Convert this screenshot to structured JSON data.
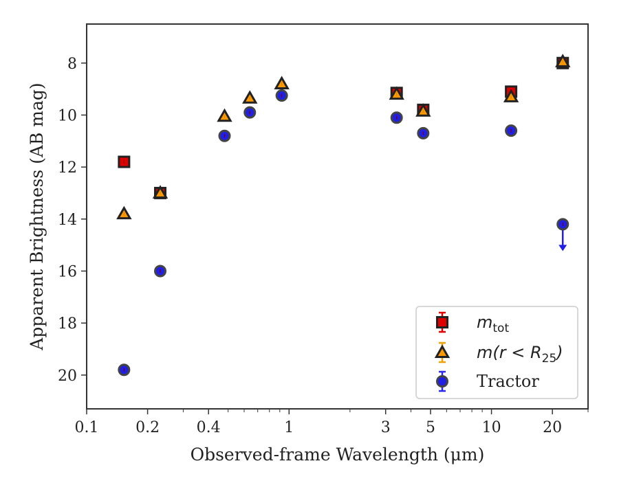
{
  "chart_data": {
    "type": "scatter",
    "title": "",
    "xlabel": "Observed-frame Wavelength (μm)",
    "ylabel": "Apparent Brightness (AB mag)",
    "xscale": "log",
    "xlim": [
      0.1,
      30
    ],
    "ylim": [
      21.3,
      6.5
    ],
    "y_inverted": true,
    "grid": false,
    "legend_position": "lower-right",
    "x_ticks": [
      {
        "value": 0.1,
        "label": "0.1"
      },
      {
        "value": 0.2,
        "label": "0.2"
      },
      {
        "value": 0.4,
        "label": "0.4"
      },
      {
        "value": 1,
        "label": "1"
      },
      {
        "value": 3,
        "label": "3"
      },
      {
        "value": 5,
        "label": "5"
      },
      {
        "value": 10,
        "label": "10"
      },
      {
        "value": 20,
        "label": "20"
      }
    ],
    "y_ticks": [
      {
        "value": 8,
        "label": "8"
      },
      {
        "value": 10,
        "label": "10"
      },
      {
        "value": 12,
        "label": "12"
      },
      {
        "value": 14,
        "label": "14"
      },
      {
        "value": 16,
        "label": "16"
      },
      {
        "value": 18,
        "label": "18"
      },
      {
        "value": 20,
        "label": "20"
      }
    ],
    "series": [
      {
        "name": "m_tot",
        "legend_base": "m",
        "legend_sub": "tot",
        "marker": "square",
        "color": "#e00000",
        "edge_color": "#222222",
        "points": [
          {
            "x": 0.153,
            "y": 11.8
          },
          {
            "x": 0.231,
            "y": 13.0
          },
          {
            "x": 3.4,
            "y": 9.15
          },
          {
            "x": 4.6,
            "y": 9.8
          },
          {
            "x": 12.5,
            "y": 9.1
          },
          {
            "x": 22.5,
            "y": 8.0
          }
        ]
      },
      {
        "name": "m(r < R_25)",
        "legend_base": "m(r < R",
        "legend_sub": "25",
        "legend_tail": ")",
        "marker": "triangle",
        "color": "#ff9900",
        "edge_color": "#222222",
        "points": [
          {
            "x": 0.153,
            "y": 13.8
          },
          {
            "x": 0.231,
            "y": 13.0
          },
          {
            "x": 0.48,
            "y": 10.05
          },
          {
            "x": 0.64,
            "y": 9.35
          },
          {
            "x": 0.92,
            "y": 8.8
          },
          {
            "x": 3.4,
            "y": 9.2
          },
          {
            "x": 4.6,
            "y": 9.85
          },
          {
            "x": 12.5,
            "y": 9.3
          },
          {
            "x": 22.5,
            "y": 7.95
          }
        ]
      },
      {
        "name": "Tractor",
        "marker": "circle",
        "color": "#1f1fe6",
        "edge_color": "#444444",
        "points": [
          {
            "x": 0.153,
            "y": 19.8
          },
          {
            "x": 0.231,
            "y": 16.0
          },
          {
            "x": 0.48,
            "y": 10.8
          },
          {
            "x": 0.64,
            "y": 9.9
          },
          {
            "x": 0.92,
            "y": 9.25
          },
          {
            "x": 3.4,
            "y": 10.1
          },
          {
            "x": 4.6,
            "y": 10.7
          },
          {
            "x": 12.5,
            "y": 10.6
          },
          {
            "x": 22.5,
            "y": 14.2,
            "upper_limit": true
          }
        ]
      }
    ]
  }
}
